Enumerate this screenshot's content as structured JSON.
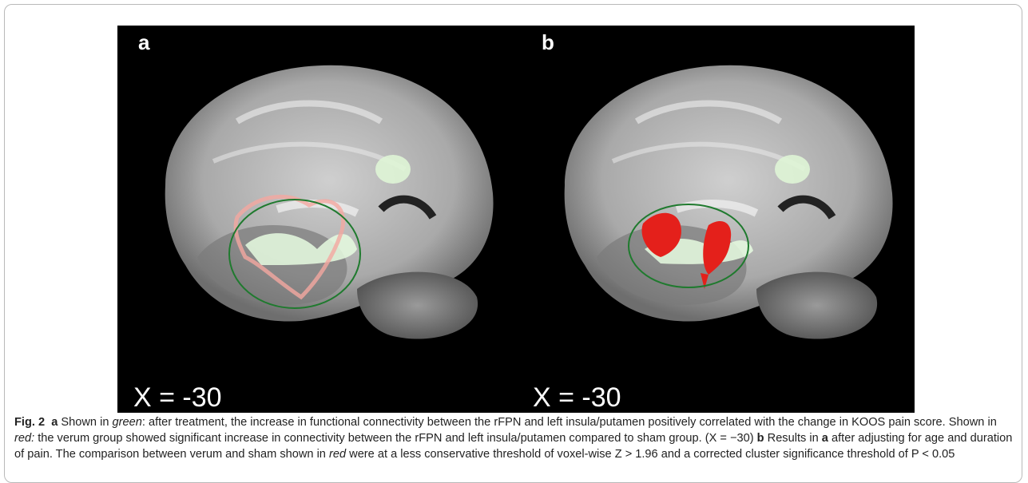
{
  "figure": {
    "panels": [
      {
        "label": "a",
        "coordinate": "X = -30"
      },
      {
        "label": "b",
        "coordinate": "X = -30"
      }
    ],
    "caption": [
      {
        "text": "Fig. 2",
        "style": "bold"
      },
      {
        "text": "a",
        "style": "bold"
      },
      {
        "text": "Shown in",
        "style": "normal"
      },
      {
        "text": "green",
        "style": "italic"
      },
      {
        "text": ": after treatment, the increase in functional connectivity between the rFPN and left insula/putamen positively correlated with the change in KOOS pain score. Shown in",
        "style": "normal"
      },
      {
        "text": "red:",
        "style": "italic"
      },
      {
        "text": "the verum group showed significant increase in connectivity between the rFPN and left insula/putamen compared to sham group. (X = −30)",
        "style": "normal"
      },
      {
        "text": "b",
        "style": "bold"
      },
      {
        "text": "Results in",
        "style": "normal"
      },
      {
        "text": "a",
        "style": "bold"
      },
      {
        "text": "after adjusting for age and duration of pain. The comparison between verum and sham shown in",
        "style": "normal"
      },
      {
        "text": "red",
        "style": "italic"
      },
      {
        "text": "were at a less conservative threshold of voxel-wise Z > 1.96 and a corrected cluster significance threshold of P < 0.05",
        "style": "normal"
      }
    ]
  }
}
